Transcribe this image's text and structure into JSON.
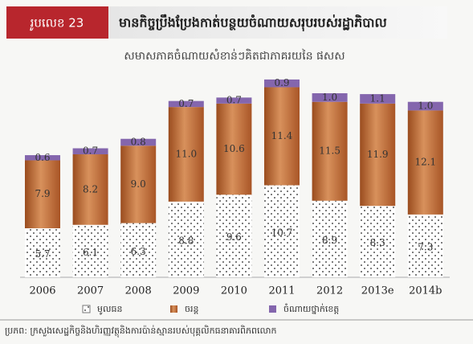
{
  "chart_data": {
    "type": "stacked_bar",
    "figure_label": "រូបលេខ 23",
    "title": "មានកិច្ចប្រឹងប្រែងកាត់បន្ថយចំណាយសរុបរបស់រដ្ឋាភិបាល",
    "subtitle": "សមាសភាគចំណាយសំខាន់ៗគិតជាភាគរយនៃ ផសស",
    "source": "ប្រភព: ក្រសួងសេដ្ឋកិច្ចនិងហិរញ្ញវត្ថុនិងការប៉ាន់ស្មានរបស់បុគ្គលិកធនាគារពិភពលោក",
    "categories": [
      "2006",
      "2007",
      "2008",
      "2009",
      "2010",
      "2011",
      "2012",
      "2013e",
      "2014b"
    ],
    "series": [
      {
        "name": "មូលធន",
        "color": "#ffffff",
        "pattern": "dots",
        "values": [
          5.7,
          6.1,
          6.3,
          8.8,
          9.6,
          10.7,
          8.9,
          8.3,
          7.3
        ],
        "value_labels": [
          "5.7",
          "6.1",
          "6.3",
          "8.8",
          "9.6",
          "10.7",
          "8.9",
          "8.3",
          "7.3"
        ]
      },
      {
        "name": "ចរន្ត",
        "color": "#b3602c",
        "values": [
          7.9,
          8.2,
          9.0,
          11.0,
          10.6,
          11.4,
          11.5,
          11.9,
          12.1
        ],
        "value_labels": [
          "7.9",
          "8.2",
          "9.0",
          "11.0",
          "10.6",
          "11.4",
          "11.5",
          "11.9",
          "12.1"
        ]
      },
      {
        "name": "ចំណាយថ្នាក់ខេត្ត",
        "color": "#8466ad",
        "values": [
          0.6,
          0.7,
          0.8,
          0.7,
          0.7,
          0.9,
          1.0,
          1.1,
          1.0
        ],
        "value_labels": [
          "0.6",
          "0.7",
          "0.8",
          "0.7",
          "0.7",
          "0.9",
          "1.0",
          "1.1",
          "1.0"
        ]
      }
    ]
  }
}
